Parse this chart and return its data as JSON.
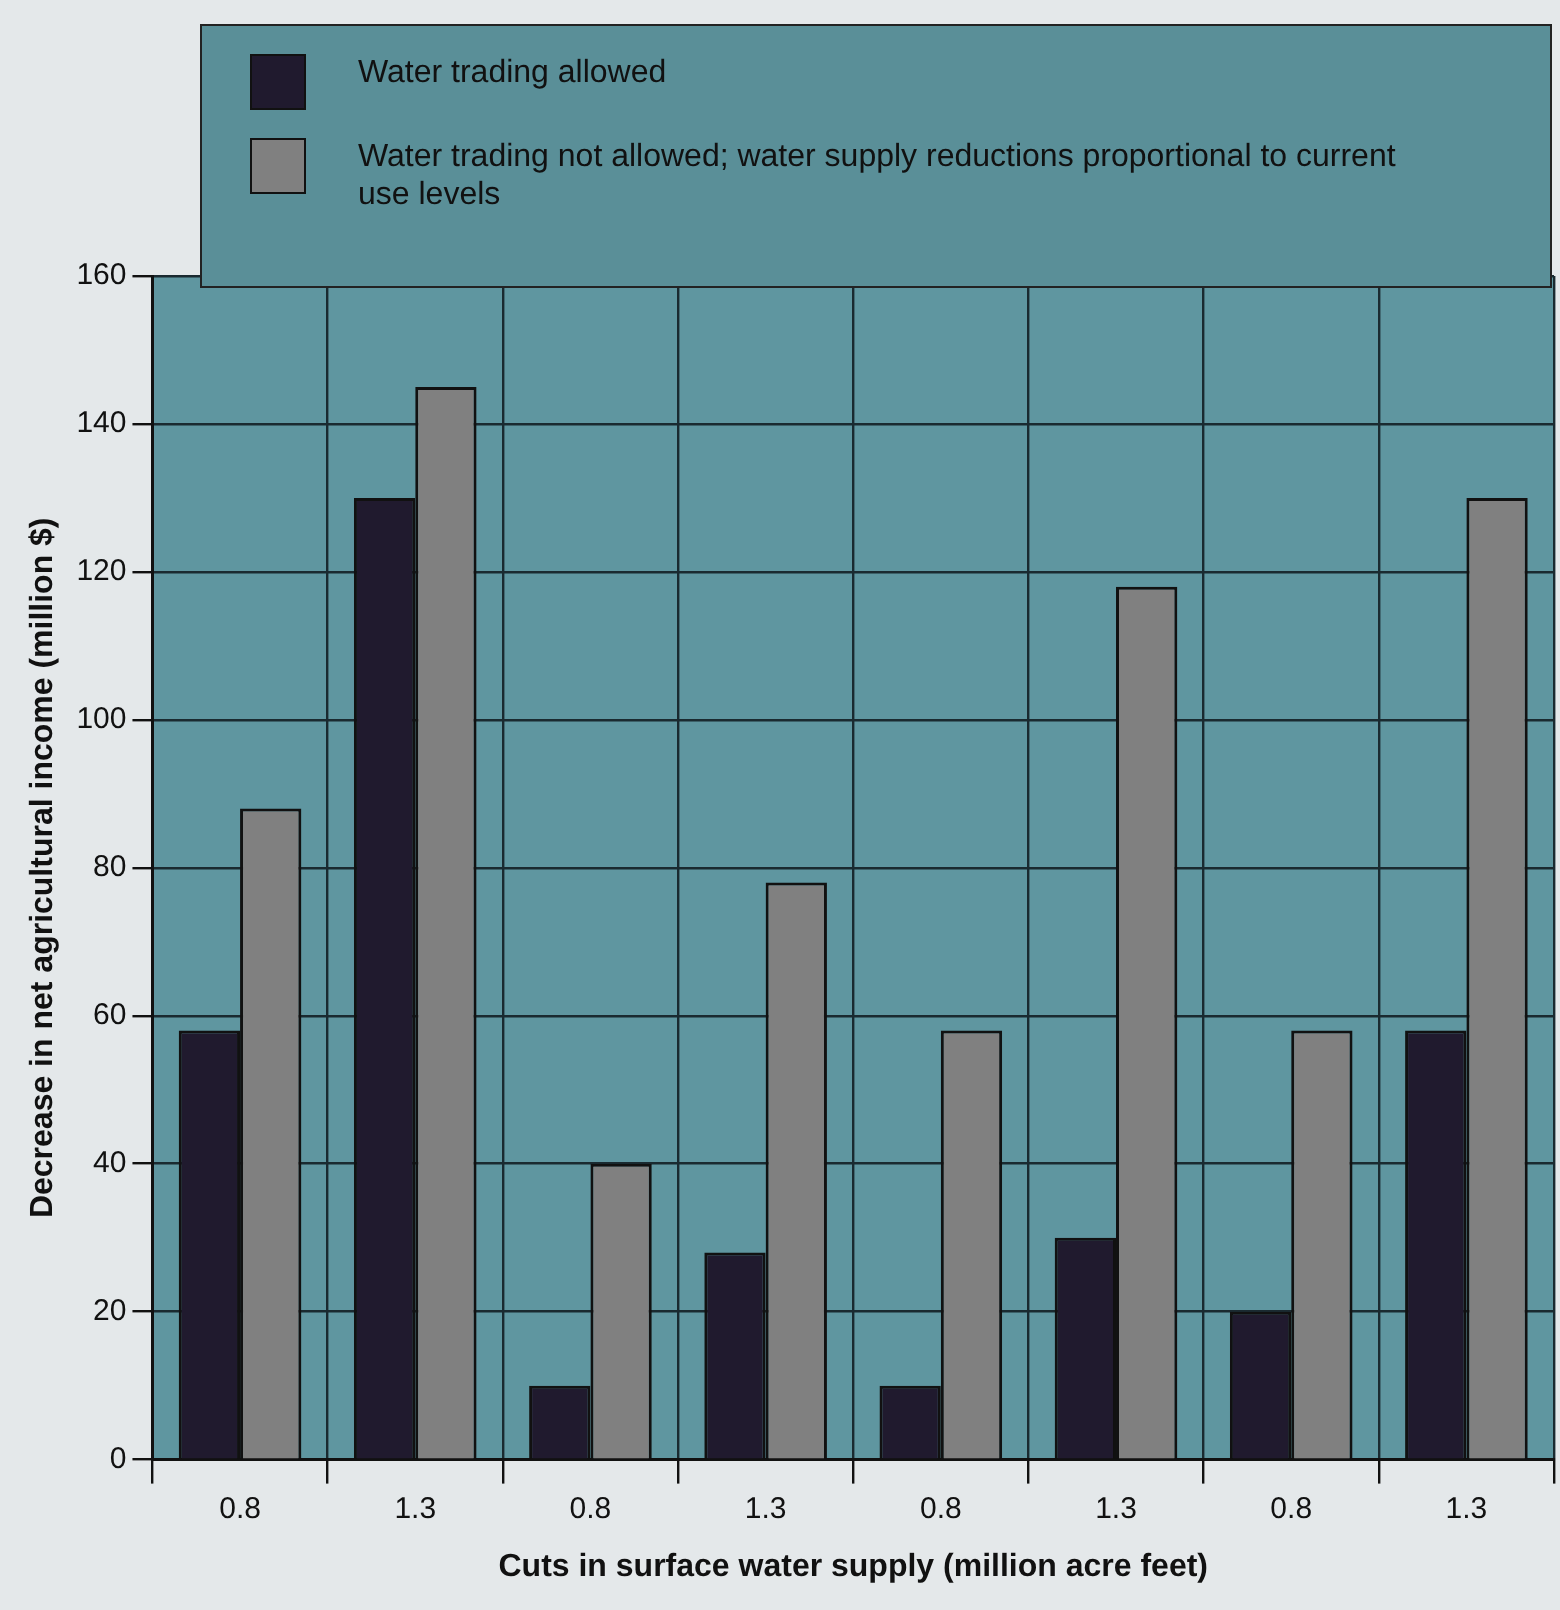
{
  "chart_data": {
    "type": "bar",
    "xlabel": "Cuts in surface water supply (million acre feet)",
    "ylabel": "Decrease in net agricultural income (million $)",
    "categories": [
      "0.8",
      "1.3",
      "0.8",
      "1.3",
      "0.8",
      "1.3",
      "0.8",
      "1.3"
    ],
    "series": [
      {
        "name": "Water trading allowed",
        "color": "#201a2e",
        "values": [
          58,
          130,
          10,
          28,
          10,
          30,
          20,
          58
        ]
      },
      {
        "name": "Water trading not allowed; water supply reductions proportional to current use levels",
        "color": "#808080",
        "values": [
          88,
          145,
          40,
          78,
          58,
          118,
          58,
          130
        ]
      }
    ],
    "ylim": [
      0,
      160
    ],
    "yticks": [
      0,
      20,
      40,
      60,
      80,
      100,
      120,
      140,
      160
    ],
    "grid": true,
    "legend": "top"
  }
}
